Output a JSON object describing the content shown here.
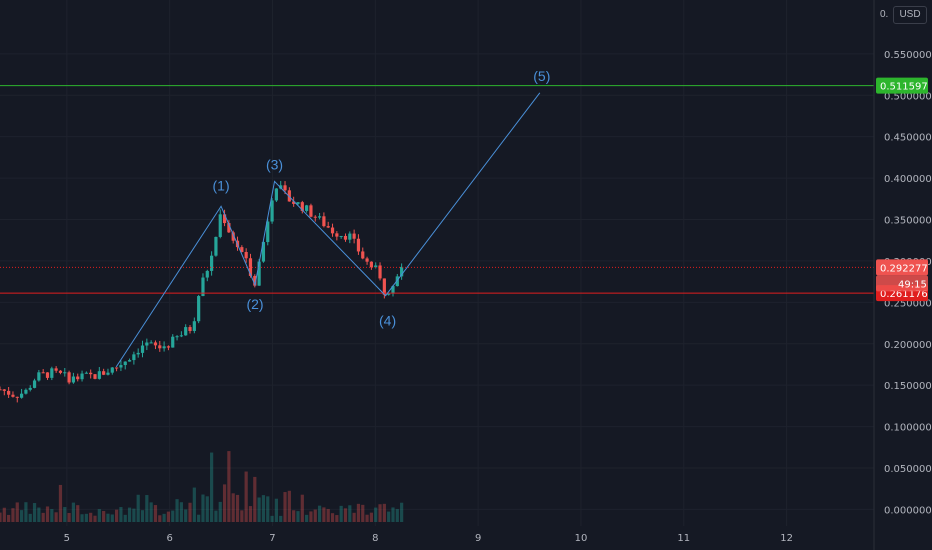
{
  "currency": "USD",
  "top_tick": "0.",
  "price_axis": {
    "ticks": [
      "0.550000",
      "0.500000",
      "0.450000",
      "0.400000",
      "0.350000",
      "0.300000",
      "0.250000",
      "0.200000",
      "0.150000",
      "0.100000",
      "0.050000",
      "0.000000"
    ]
  },
  "time_axis": {
    "ticks": [
      "5",
      "6",
      "7",
      "8",
      "9",
      "10",
      "11",
      "12"
    ]
  },
  "labels": {
    "resistance": "0.511597",
    "current": "0.292277",
    "countdown": "49:15",
    "support": "0.261176"
  },
  "colors": {
    "background": "#151924",
    "up": "#26a69a",
    "down": "#ef5350",
    "resistance_line": "#2db52d",
    "support_line": "#e01e1e",
    "wave": "#4a90d9"
  },
  "chart_data": {
    "type": "candlestick",
    "x_range": [
      4.35,
      12.85
    ],
    "y_range": [
      -0.02,
      0.615
    ],
    "horizontal_lines": [
      {
        "price": 0.511597,
        "color": "#2db52d"
      },
      {
        "price": 0.261176,
        "color": "#e01e1e"
      },
      {
        "price": 0.292277,
        "style": "dotted",
        "color": "#e01e1e"
      }
    ],
    "elliott_wave": [
      {
        "label": "",
        "x": 5.48,
        "price": 0.172
      },
      {
        "label": "(1)",
        "x": 6.5,
        "price": 0.366
      },
      {
        "label": "(2)",
        "x": 6.83,
        "price": 0.271
      },
      {
        "label": "(3)",
        "x": 7.02,
        "price": 0.396
      },
      {
        "label": "(4)",
        "x": 8.1,
        "price": 0.258
      },
      {
        "label": "(5)",
        "x": 9.6,
        "price": 0.503
      }
    ],
    "candle_anchors": [
      [
        4.35,
        0.145
      ],
      [
        4.5,
        0.138
      ],
      [
        4.6,
        0.142
      ],
      [
        4.7,
        0.16
      ],
      [
        4.85,
        0.165
      ],
      [
        5.05,
        0.158
      ],
      [
        5.3,
        0.162
      ],
      [
        5.48,
        0.172
      ],
      [
        5.62,
        0.185
      ],
      [
        5.75,
        0.2
      ],
      [
        5.9,
        0.195
      ],
      [
        6.0,
        0.2
      ],
      [
        6.15,
        0.215
      ],
      [
        6.22,
        0.22
      ],
      [
        6.3,
        0.27
      ],
      [
        6.4,
        0.3
      ],
      [
        6.5,
        0.36
      ],
      [
        6.6,
        0.33
      ],
      [
        6.7,
        0.31
      ],
      [
        6.83,
        0.275
      ],
      [
        6.9,
        0.315
      ],
      [
        7.02,
        0.395
      ],
      [
        7.15,
        0.375
      ],
      [
        7.3,
        0.365
      ],
      [
        7.45,
        0.35
      ],
      [
        7.6,
        0.335
      ],
      [
        7.75,
        0.33
      ],
      [
        7.9,
        0.3
      ],
      [
        8.0,
        0.29
      ],
      [
        8.1,
        0.26
      ],
      [
        8.25,
        0.292
      ]
    ]
  }
}
